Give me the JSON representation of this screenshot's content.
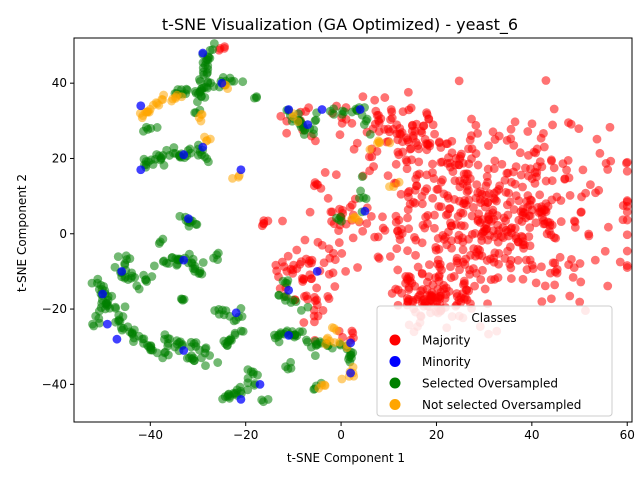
{
  "chart_data": {
    "type": "scatter",
    "title": "t-SNE Visualization (GA Optimized) - yeast_6",
    "xlabel": "t-SNE Component 1",
    "ylabel": "t-SNE Component 2",
    "xlim": [
      -56,
      61
    ],
    "ylim": [
      -50,
      52
    ],
    "xticks": [
      -40,
      -20,
      0,
      20,
      40,
      60
    ],
    "yticks": [
      -40,
      -20,
      0,
      20,
      40
    ],
    "grid": false,
    "legend": {
      "title": "Classes",
      "placement": "lower-right",
      "entries": [
        {
          "label": "Majority",
          "color": "#ff0000"
        },
        {
          "label": "Minority",
          "color": "#0000ff"
        },
        {
          "label": "Selected Oversampled",
          "color": "#008000"
        },
        {
          "label": "Not selected Oversampled",
          "color": "#ffa500"
        }
      ]
    },
    "series": [
      {
        "name": "Majority",
        "color": "#ff0000",
        "clusters": [
          {
            "cx": 30,
            "cy": 5,
            "sx": 13,
            "sy": 12,
            "n": 520
          },
          {
            "cx": 20,
            "cy": -17,
            "sx": 4,
            "sy": 3,
            "n": 90
          },
          {
            "cx": 12,
            "cy": 25,
            "sx": 5,
            "sy": 4,
            "n": 70
          },
          {
            "cx": -8,
            "cy": -10,
            "sx": 4,
            "sy": 4,
            "n": 45
          },
          {
            "cx": 0,
            "cy": 5,
            "sx": 3,
            "sy": 3,
            "n": 20
          },
          {
            "cx": -5,
            "cy": -20,
            "sx": 1.5,
            "sy": 2.5,
            "n": 15
          },
          {
            "cx": -10,
            "cy": 30,
            "sx": 2,
            "sy": 2,
            "n": 10
          },
          {
            "cx": -5,
            "cy": 13,
            "sx": 0.6,
            "sy": 0.6,
            "n": 5
          },
          {
            "cx": -16,
            "cy": 3,
            "sx": 0.6,
            "sy": 0.6,
            "n": 5
          },
          {
            "cx": 2,
            "cy": -27,
            "sx": 1,
            "sy": 1.5,
            "n": 6
          },
          {
            "cx": 2,
            "cy": 30,
            "sx": 3,
            "sy": 2,
            "n": 10
          },
          {
            "cx": -25,
            "cy": 49,
            "sx": 1,
            "sy": 0.4,
            "n": 4
          }
        ]
      },
      {
        "name": "Minority",
        "color": "#0000ff",
        "points": [
          [
            -42,
            34
          ],
          [
            -42,
            17
          ],
          [
            -33,
            21
          ],
          [
            -29,
            23
          ],
          [
            -32,
            4
          ],
          [
            -25,
            40
          ],
          [
            -29,
            48
          ],
          [
            -21,
            17
          ],
          [
            -11,
            33
          ],
          [
            -7,
            29
          ],
          [
            -4,
            33
          ],
          [
            4,
            33
          ],
          [
            -46,
            -10
          ],
          [
            -47,
            -28
          ],
          [
            -50,
            -16
          ],
          [
            -49,
            -24
          ],
          [
            -33,
            -7
          ],
          [
            -33,
            -31
          ],
          [
            -22,
            -21
          ],
          [
            -17,
            -40
          ],
          [
            -21,
            -44
          ],
          [
            -11,
            -27
          ],
          [
            -11,
            -15
          ],
          [
            -5,
            -10
          ],
          [
            2,
            -29
          ],
          [
            2,
            -37
          ],
          [
            5,
            6
          ]
        ]
      },
      {
        "name": "Selected Oversampled",
        "color": "#008000",
        "paths": [
          {
            "pts": [
              [
                -42,
                18
              ],
              [
                -35,
                21
              ],
              [
                -30,
                22
              ],
              [
                -27,
                19
              ]
            ],
            "n": 40,
            "w": 0.8
          },
          {
            "pts": [
              [
                -42,
                28
              ],
              [
                -38,
                28
              ]
            ],
            "n": 5,
            "w": 0.4
          },
          {
            "pts": [
              [
                -35,
                37
              ],
              [
                -30,
                38
              ],
              [
                -26,
                40
              ],
              [
                -22,
                41
              ]
            ],
            "n": 35,
            "w": 0.7
          },
          {
            "pts": [
              [
                -28,
                50
              ],
              [
                -28,
                44
              ],
              [
                -29,
                40
              ]
            ],
            "n": 20,
            "w": 0.6
          },
          {
            "pts": [
              [
                -31,
                32
              ],
              [
                -29,
                34
              ],
              [
                -30,
                38
              ]
            ],
            "n": 8,
            "w": 0.5
          },
          {
            "pts": [
              [
                -12,
                33
              ],
              [
                -8,
                28
              ],
              [
                -6,
                27
              ]
            ],
            "n": 20,
            "w": 0.8
          },
          {
            "pts": [
              [
                -6,
                30
              ],
              [
                -4,
                32
              ],
              [
                0,
                33
              ],
              [
                4,
                33
              ],
              [
                7,
                26
              ]
            ],
            "n": 20,
            "w": 0.6
          },
          {
            "pts": [
              [
                -17,
                36
              ],
              [
                -18,
                36
              ]
            ],
            "n": 3,
            "w": 0.4
          },
          {
            "pts": [
              [
                -51,
                -13
              ],
              [
                -48,
                -20
              ],
              [
                -45,
                -26
              ],
              [
                -40,
                -30
              ],
              [
                -37,
                -32
              ]
            ],
            "n": 55,
            "w": 0.9
          },
          {
            "pts": [
              [
                -50,
                -17
              ],
              [
                -51,
                -25
              ]
            ],
            "n": 10,
            "w": 0.7
          },
          {
            "pts": [
              [
                -45,
                -5
              ],
              [
                -46,
                -10
              ],
              [
                -44,
                -13
              ],
              [
                -40,
                -12
              ]
            ],
            "n": 25,
            "w": 0.8
          },
          {
            "pts": [
              [
                -40,
                -8
              ],
              [
                -35,
                -7
              ],
              [
                -32,
                -6
              ],
              [
                -29,
                -10
              ]
            ],
            "n": 30,
            "w": 0.8
          },
          {
            "pts": [
              [
                -34,
                5
              ],
              [
                -32,
                3
              ],
              [
                -30,
                1
              ]
            ],
            "n": 10,
            "w": 0.5
          },
          {
            "pts": [
              [
                -37,
                -1
              ],
              [
                -39,
                -3
              ]
            ],
            "n": 3,
            "w": 0.3
          },
          {
            "pts": [
              [
                -33,
                -16
              ],
              [
                -33,
                -18
              ]
            ],
            "n": 4,
            "w": 0.3
          },
          {
            "pts": [
              [
                -36,
                -28
              ],
              [
                -34,
                -30
              ],
              [
                -31,
                -30
              ],
              [
                -28,
                -31
              ]
            ],
            "n": 20,
            "w": 0.7
          },
          {
            "pts": [
              [
                -36,
                -27
              ],
              [
                -37,
                -34
              ]
            ],
            "n": 6,
            "w": 0.5
          },
          {
            "pts": [
              [
                -32,
                -33
              ],
              [
                -29,
                -34
              ],
              [
                -27,
                -35
              ]
            ],
            "n": 10,
            "w": 0.5
          },
          {
            "pts": [
              [
                -27,
                -20
              ],
              [
                -24,
                -21
              ],
              [
                -22,
                -22
              ]
            ],
            "n": 10,
            "w": 0.5
          },
          {
            "pts": [
              [
                -25,
                -30
              ],
              [
                -23,
                -28
              ],
              [
                -21,
                -24
              ],
              [
                -22,
                -20
              ]
            ],
            "n": 15,
            "w": 0.6
          },
          {
            "pts": [
              [
                -25,
                -44
              ],
              [
                -22,
                -42
              ],
              [
                -19,
                -39
              ],
              [
                -17,
                -40
              ]
            ],
            "n": 20,
            "w": 0.6
          },
          {
            "pts": [
              [
                -20,
                -35
              ],
              [
                -18,
                -38
              ]
            ],
            "n": 5,
            "w": 0.5
          },
          {
            "pts": [
              [
                -16,
                -45
              ],
              [
                -17,
                -43
              ]
            ],
            "n": 3,
            "w": 0.4
          },
          {
            "pts": [
              [
                -14,
                -26
              ],
              [
                -12,
                -28
              ],
              [
                -10,
                -25
              ],
              [
                -8,
                -28
              ],
              [
                -6,
                -30
              ],
              [
                -2,
                -30
              ]
            ],
            "n": 35,
            "w": 0.8
          },
          {
            "pts": [
              [
                -12,
                -35
              ],
              [
                -10,
                -36
              ]
            ],
            "n": 4,
            "w": 0.4
          },
          {
            "pts": [
              [
                -13,
                -16
              ],
              [
                -10,
                -18
              ],
              [
                -7,
                -20
              ]
            ],
            "n": 10,
            "w": 0.6
          },
          {
            "pts": [
              [
                -6,
                -41
              ],
              [
                -4,
                -40
              ]
            ],
            "n": 4,
            "w": 0.4
          },
          {
            "pts": [
              [
                0,
                -29
              ],
              [
                2,
                -32
              ],
              [
                2,
                -35
              ]
            ],
            "n": 12,
            "w": 0.5
          },
          {
            "pts": [
              [
                -26,
                -4
              ],
              [
                -26,
                -10
              ]
            ],
            "n": 4,
            "w": 0.4
          },
          {
            "pts": [
              [
                4,
                16
              ],
              [
                5,
                10
              ],
              [
                5,
                6
              ]
            ],
            "n": 6,
            "w": 0.5
          },
          {
            "pts": [
              [
                -2,
                6
              ],
              [
                0,
                3
              ]
            ],
            "n": 4,
            "w": 0.4
          },
          {
            "pts": [
              [
                -11,
                -12
              ],
              [
                -12,
                -14
              ]
            ],
            "n": 4,
            "w": 0.4
          }
        ]
      },
      {
        "name": "Not selected Oversampled",
        "color": "#ffa500",
        "paths": [
          {
            "pts": [
              [
                -42,
                31
              ],
              [
                -39,
                34
              ],
              [
                -36,
                36
              ],
              [
                -33,
                37
              ]
            ],
            "n": 22,
            "w": 0.5
          },
          {
            "pts": [
              [
                -30,
                30
              ],
              [
                -29,
                32
              ]
            ],
            "n": 4,
            "w": 0.4
          },
          {
            "pts": [
              [
                -29,
                26
              ],
              [
                -28,
                24
              ]
            ],
            "n": 4,
            "w": 0.4
          },
          {
            "pts": [
              [
                -24,
                39
              ],
              [
                -23,
                40
              ]
            ],
            "n": 3,
            "w": 0.3
          },
          {
            "pts": [
              [
                -23,
                15
              ],
              [
                -21,
                15
              ]
            ],
            "n": 3,
            "w": 0.3
          },
          {
            "pts": [
              [
                -4,
                -28
              ],
              [
                -1,
                -29
              ],
              [
                2,
                -30
              ]
            ],
            "n": 8,
            "w": 0.4
          },
          {
            "pts": [
              [
                -2,
                -25
              ],
              [
                -1,
                -26
              ]
            ],
            "n": 3,
            "w": 0.3
          },
          {
            "pts": [
              [
                -5,
                -41
              ],
              [
                -3,
                -40
              ]
            ],
            "n": 4,
            "w": 0.3
          },
          {
            "pts": [
              [
                0,
                -39
              ],
              [
                2,
                -38
              ],
              [
                3,
                -36
              ]
            ],
            "n": 6,
            "w": 0.4
          },
          {
            "pts": [
              [
                2,
                5
              ],
              [
                4,
                4
              ]
            ],
            "n": 4,
            "w": 0.4
          },
          {
            "pts": [
              [
                10,
                13
              ],
              [
                12,
                14
              ]
            ],
            "n": 3,
            "w": 0.3
          },
          {
            "pts": [
              [
                6,
                22
              ],
              [
                8,
                24
              ],
              [
                10,
                25
              ]
            ],
            "n": 6,
            "w": 0.5
          },
          {
            "pts": [
              [
                -10,
                32
              ],
              [
                -9,
                30
              ]
            ],
            "n": 3,
            "w": 0.3
          }
        ]
      }
    ]
  }
}
